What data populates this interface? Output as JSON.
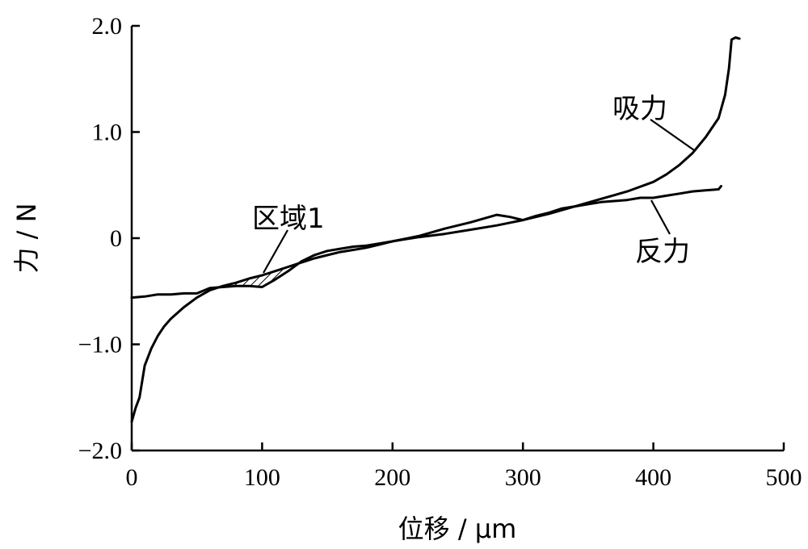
{
  "chart_data": {
    "type": "line",
    "title": "",
    "xlabel": "位移 / μm",
    "ylabel": "力 / N",
    "xlim": [
      0,
      500
    ],
    "ylim": [
      -2.0,
      2.0
    ],
    "xticks": [
      "0",
      "100",
      "200",
      "300",
      "400",
      "500"
    ],
    "yticks": [
      "−2.0",
      "−1.0",
      "0",
      "1.0",
      "2.0"
    ],
    "grid": false,
    "legend": "none",
    "series": [
      {
        "name": "吸力",
        "x": [
          0,
          3,
          6,
          10,
          15,
          20,
          25,
          30,
          40,
          50,
          60,
          70,
          80,
          90,
          100,
          110,
          120,
          130,
          140,
          150,
          160,
          170,
          180,
          190,
          200,
          220,
          240,
          260,
          280,
          300,
          320,
          340,
          360,
          380,
          400,
          410,
          420,
          430,
          440,
          450,
          455,
          458,
          460,
          463,
          466
        ],
        "y": [
          -1.73,
          -1.6,
          -1.5,
          -1.2,
          -1.04,
          -0.92,
          -0.83,
          -0.76,
          -0.65,
          -0.56,
          -0.49,
          -0.45,
          -0.42,
          -0.38,
          -0.35,
          -0.31,
          -0.27,
          -0.23,
          -0.19,
          -0.16,
          -0.13,
          -0.11,
          -0.09,
          -0.06,
          -0.03,
          0.01,
          0.04,
          0.08,
          0.12,
          0.17,
          0.23,
          0.3,
          0.37,
          0.44,
          0.53,
          0.6,
          0.69,
          0.8,
          0.95,
          1.13,
          1.35,
          1.6,
          1.87,
          1.89,
          1.88
        ]
      },
      {
        "name": "反力",
        "x": [
          0,
          10,
          20,
          30,
          40,
          50,
          60,
          70,
          80,
          90,
          100,
          110,
          120,
          130,
          140,
          150,
          160,
          170,
          180,
          190,
          200,
          220,
          240,
          260,
          280,
          290,
          300,
          310,
          320,
          330,
          340,
          350,
          360,
          370,
          380,
          390,
          400,
          410,
          420,
          430,
          440,
          450,
          452
        ],
        "y": [
          -0.56,
          -0.55,
          -0.53,
          -0.53,
          -0.52,
          -0.52,
          -0.47,
          -0.46,
          -0.45,
          -0.45,
          -0.46,
          -0.39,
          -0.31,
          -0.22,
          -0.16,
          -0.12,
          -0.1,
          -0.08,
          -0.07,
          -0.05,
          -0.03,
          0.02,
          0.09,
          0.15,
          0.22,
          0.2,
          0.17,
          0.21,
          0.24,
          0.28,
          0.3,
          0.32,
          0.34,
          0.35,
          0.36,
          0.38,
          0.38,
          0.4,
          0.42,
          0.44,
          0.45,
          0.46,
          0.49
        ]
      }
    ],
    "annotations": [
      {
        "text": "吸力"
      },
      {
        "text": "反力"
      },
      {
        "text": "区域1"
      }
    ]
  }
}
